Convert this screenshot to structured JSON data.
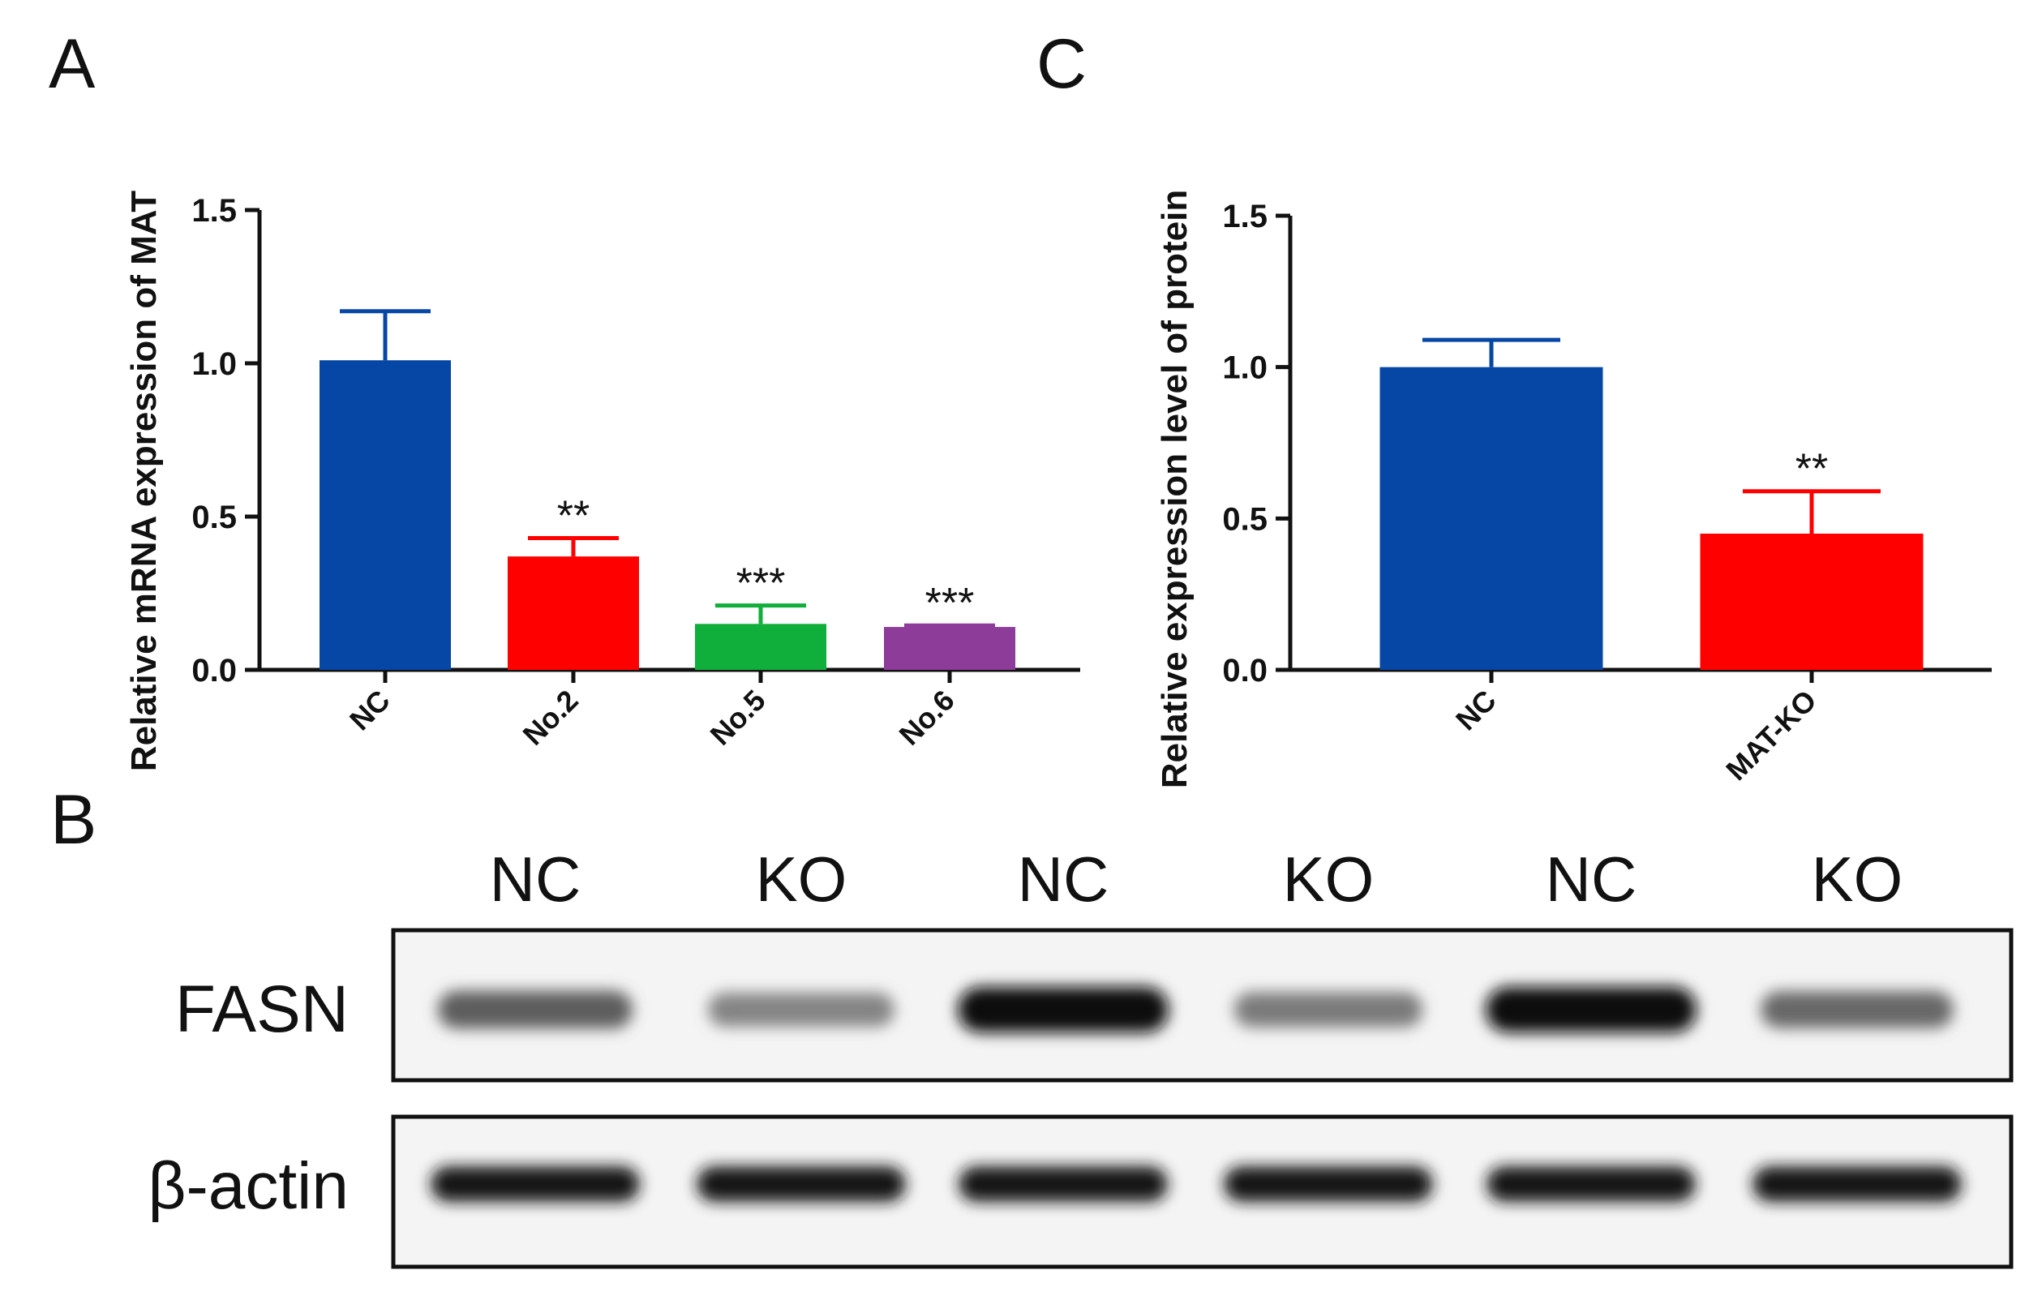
{
  "panels": {
    "a": "A",
    "b": "B",
    "c": "C"
  },
  "chart_data": [
    {
      "type": "bar",
      "panel": "A",
      "ylabel": "Relative mRNA expression of MAT",
      "xlabel": "",
      "ylim": [
        0,
        1.5
      ],
      "yticks": [
        "0.0",
        "0.5",
        "1.0",
        "1.5"
      ],
      "ytick_values": [
        0,
        0.5,
        1.0,
        1.5
      ],
      "categories": [
        "NC",
        "No.2",
        "No.5",
        "No.6"
      ],
      "values": [
        1.01,
        0.37,
        0.15,
        0.14
      ],
      "errors": [
        0.16,
        0.06,
        0.06,
        0.005
      ],
      "significance": [
        "",
        "**",
        "***",
        "***"
      ],
      "colors": [
        "#0647a6",
        "#fe0000",
        "#10ae3a",
        "#8d3c99"
      ]
    },
    {
      "type": "bar",
      "panel": "C",
      "ylabel": "Relative expression level of protein",
      "xlabel": "",
      "ylim": [
        0,
        1.5
      ],
      "yticks": [
        "0.0",
        "0.5",
        "1.0",
        "1.5"
      ],
      "ytick_values": [
        0,
        0.5,
        1.0,
        1.5
      ],
      "categories": [
        "NC",
        "MAT-KO"
      ],
      "values": [
        1.0,
        0.45
      ],
      "errors": [
        0.09,
        0.14
      ],
      "significance": [
        "",
        "**"
      ],
      "colors": [
        "#0647a6",
        "#fe0000"
      ]
    }
  ],
  "blot": {
    "lanes": [
      "NC",
      "KO",
      "NC",
      "KO",
      "NC",
      "KO"
    ],
    "rows": [
      {
        "label": "FASN",
        "intensities": [
          0.55,
          0.35,
          0.95,
          0.4,
          0.95,
          0.5
        ]
      },
      {
        "label": "β-actin",
        "intensities": [
          0.9,
          0.9,
          0.9,
          0.9,
          0.9,
          0.9
        ]
      }
    ]
  }
}
